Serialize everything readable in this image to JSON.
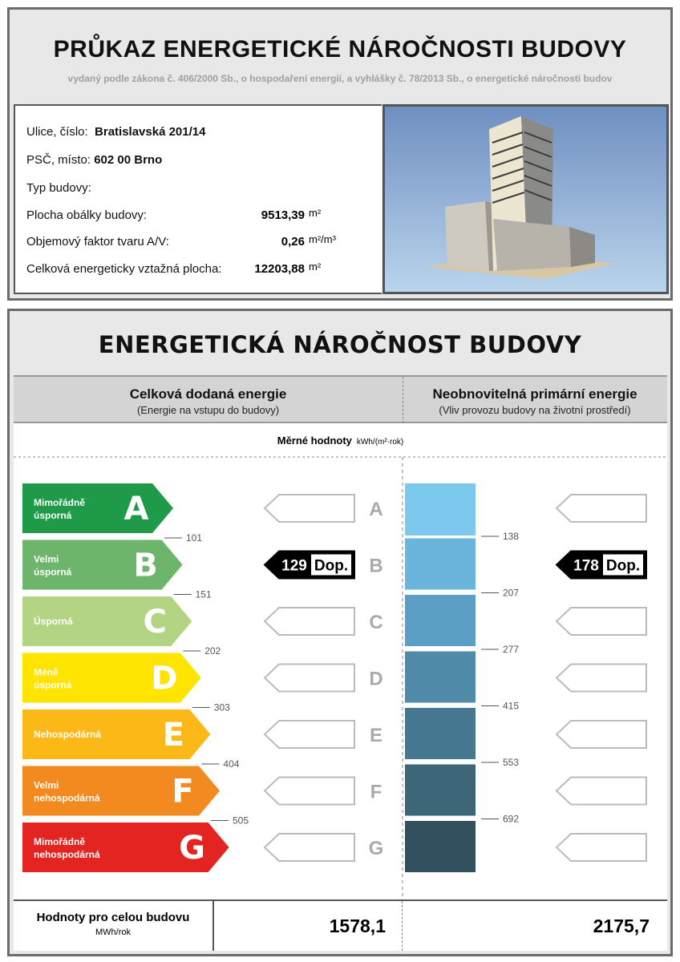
{
  "header": {
    "title": "PRŮKAZ ENERGETICKÉ NÁROČNOSTI BUDOVY",
    "subtitle": "vydaný podle zákona č. 406/2000 Sb., o hospodaření energií, a vyhlášky č. 78/2013 Sb., o energetické náročnosti budov"
  },
  "info": {
    "street_label": "Ulice, číslo:",
    "street": "Bratislavská 201/14",
    "city_label": "PSČ, místo:",
    "city": "602 00 Brno",
    "type_label": "Typ budovy:",
    "envelope_label": "Plocha obálky budovy:",
    "envelope": "9513,39",
    "envelope_unit": "m²",
    "factor_label": "Objemový faktor tvaru A/V:",
    "factor": "0,26",
    "factor_unit": "m²/m³",
    "area_label": "Celková energeticky vztažná plocha:",
    "area": "12203,88",
    "area_unit": "m²"
  },
  "section": {
    "title": "ENERGETICKÁ NÁROČNOST BUDOVY",
    "left_heading": "Celková dodaná energie",
    "left_sub": "(Energie na vstupu do budovy)",
    "right_heading": "Neobnovitelná primární energie",
    "right_sub": "(Vliv provozu budovy na životní prostředí)",
    "specific_label": "Měrné hodnoty",
    "specific_unit": "kWh/(m²·rok)"
  },
  "classes": [
    {
      "letter": "A",
      "label": "Mimořádně úsporná",
      "color": "#1e9a48"
    },
    {
      "letter": "B",
      "label": "Velmi úsporná",
      "color": "#6cb56b"
    },
    {
      "letter": "C",
      "label": "Úsporná",
      "color": "#b3d482"
    },
    {
      "letter": "D",
      "label": "Méně úsporná",
      "color": "#ffe400"
    },
    {
      "letter": "E",
      "label": "Nehospodárná",
      "color": "#fbb817"
    },
    {
      "letter": "F",
      "label": "Velmi nehospodárná",
      "color": "#f28a1f"
    },
    {
      "letter": "G",
      "label": "Mimořádně nehospodárná",
      "color": "#e42421"
    }
  ],
  "left_thresholds": [
    "101",
    "151",
    "202",
    "303",
    "404",
    "505"
  ],
  "right_thresholds": [
    "138",
    "207",
    "277",
    "415",
    "553",
    "692"
  ],
  "right_colors": [
    "#7dc9ee",
    "#6bb5dd",
    "#5b9fc5",
    "#4f8aa8",
    "#467891",
    "#3d6779",
    "#33505f"
  ],
  "left_rating": {
    "class": "B",
    "value": "129",
    "label": "Dop."
  },
  "right_rating": {
    "class": "B",
    "value": "178",
    "label": "Dop."
  },
  "footer": {
    "label": "Hodnoty pro celou budovu",
    "unit": "MWh/rok",
    "left_value": "1578,1",
    "right_value": "2175,7"
  }
}
